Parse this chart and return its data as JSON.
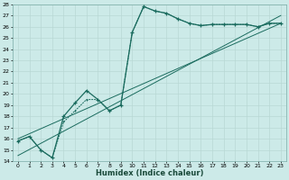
{
  "xlabel": "Humidex (Indice chaleur)",
  "ylabel": "",
  "xlim": [
    -0.5,
    23.5
  ],
  "ylim": [
    14,
    28
  ],
  "xticks": [
    0,
    1,
    2,
    3,
    4,
    5,
    6,
    7,
    8,
    9,
    10,
    11,
    12,
    13,
    14,
    15,
    16,
    17,
    18,
    19,
    20,
    21,
    22,
    23
  ],
  "yticks": [
    14,
    15,
    16,
    17,
    18,
    19,
    20,
    21,
    22,
    23,
    24,
    25,
    26,
    27,
    28
  ],
  "bg_color": "#cceae8",
  "line_color": "#1a6b5e",
  "grid_color": "#b8d8d4",
  "line1_x": [
    0,
    1,
    2,
    3,
    4,
    5,
    6,
    7,
    8,
    9,
    10,
    11,
    12,
    13,
    14,
    15,
    16,
    17,
    18,
    19,
    20,
    21,
    22,
    23
  ],
  "line1_y": [
    15.8,
    16.2,
    15.0,
    14.3,
    18.0,
    19.2,
    20.3,
    19.5,
    18.5,
    19.0,
    25.5,
    27.8,
    27.4,
    27.2,
    26.7,
    26.3,
    26.1,
    26.2,
    26.2,
    26.2,
    26.2,
    26.0,
    26.3,
    26.3
  ],
  "line2_x": [
    0,
    1,
    2,
    3,
    4,
    5,
    6,
    7,
    8,
    9,
    10,
    11,
    12,
    13,
    14,
    15,
    16,
    17,
    18,
    19,
    20,
    21,
    22,
    23
  ],
  "line2_y": [
    15.8,
    16.2,
    15.0,
    14.3,
    17.5,
    18.5,
    19.5,
    19.5,
    18.5,
    19.0,
    25.5,
    27.8,
    27.4,
    27.2,
    26.7,
    26.3,
    26.1,
    26.2,
    26.2,
    26.2,
    26.2,
    26.0,
    26.3,
    26.3
  ],
  "line3_x": [
    0,
    23
  ],
  "line3_y": [
    16.0,
    26.3
  ],
  "line4_x": [
    0,
    23
  ],
  "line4_y": [
    14.5,
    27.0
  ]
}
